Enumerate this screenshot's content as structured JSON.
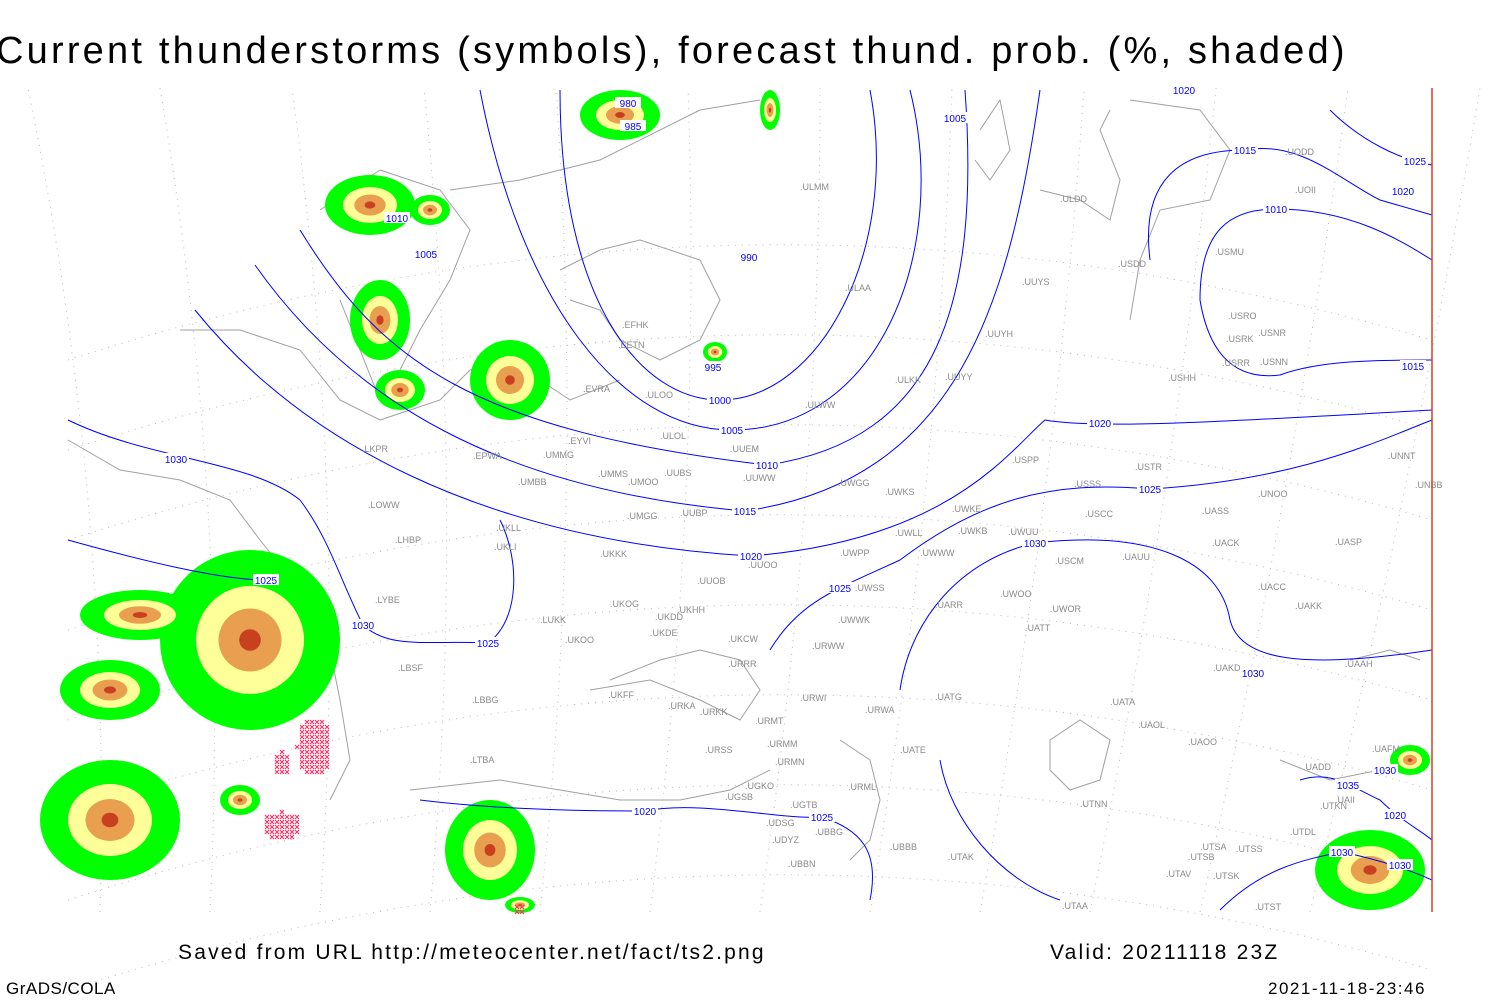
{
  "title": "Current thunderstorms (symbols), forecast thund. prob. (%, shaded)",
  "footer": {
    "saved_from": "Saved from URL http://meteocenter.net/fact/ts2.png",
    "valid": "Valid: 20211118 23Z",
    "software": "GrADS/COLA",
    "timestamp": "2021-11-18-23:46"
  },
  "colors": {
    "isobar": "#0000ff",
    "coastline": "#a0a0a0",
    "prob_low": "#00ff00",
    "prob_mid": "#ffff99",
    "prob_high": "#e8a050",
    "prob_max": "#c84020",
    "thunderstorm_symbol": "#ff3366",
    "frame_right": "#d04020"
  },
  "isobar_labels": [
    "980",
    "985",
    "1005",
    "1010",
    "1005",
    "990",
    "995",
    "1000",
    "1005",
    "1010",
    "1015",
    "1020",
    "1025",
    "1030",
    "1020",
    "1025",
    "1015",
    "1010",
    "1025",
    "1020",
    "1015",
    "1020",
    "1030",
    "1025",
    "1030",
    "1025",
    "1030",
    "1020",
    "1025",
    "1035",
    "1030",
    "1020",
    "1030",
    "1030"
  ],
  "stations": [
    "ULMM",
    "ULDD",
    "USDD",
    "USMU",
    "UOII",
    "UODD",
    "USRO",
    "USRK",
    "USNR",
    "USRR",
    "USNN",
    "USHH",
    "ULAA",
    "UUYS",
    "UUYH",
    "ULKK",
    "UUYY",
    "ULWW",
    "EFHK",
    "EETN",
    "EVRA",
    "ULOO",
    "EYVI",
    "ULOL",
    "UUEM",
    "EPWA",
    "UMMG",
    "LKPR",
    "UMMS",
    "UMOO",
    "UUBS",
    "UUWW",
    "UWGG",
    "UWKS",
    "USPP",
    "USTR",
    "USSS",
    "UNOO",
    "UNNT",
    "UNBB",
    "UMBB",
    "LOWW",
    "UKLL",
    "UKLI",
    "LHBP",
    "UMGG",
    "UUBP",
    "UWKE",
    "UWKB",
    "UWUU",
    "USCC",
    "UASS",
    "UWLL",
    "UWWW",
    "UACK",
    "UASP",
    "UKKK",
    "UUOO",
    "UWPP",
    "USCM",
    "UAUU",
    "LYBE",
    "UUOB",
    "UWSS",
    "UKHH",
    "UKOG",
    "UKDD",
    "LUKK",
    "UATT",
    "UWOO",
    "UWOR",
    "UARR",
    "UACC",
    "UAKK",
    "UKOO",
    "UKDE",
    "UKCW",
    "URWW",
    "UWWK",
    "LBSF",
    "URRR",
    "UKFF",
    "UAKD",
    "UAAH",
    "LBBG",
    "URKA",
    "URKK",
    "URWI",
    "URWA",
    "UATG",
    "UATA",
    "UAOL",
    "URMT",
    "URMM",
    "URSS",
    "UATE",
    "UAOO",
    "UAFM",
    "UADD",
    "LTBA",
    "URMN",
    "UGKO",
    "URML",
    "UGSB",
    "UTNN",
    "UGTB",
    "UAII",
    "UTKN",
    "UDSG",
    "UBBG",
    "UTDL",
    "UBBB",
    "UDYZ",
    "UTSA",
    "UTSS",
    "UTAK",
    "UTSB",
    "UBBN",
    "UTAV",
    "UTSK",
    "UTST",
    "UTAA"
  ]
}
